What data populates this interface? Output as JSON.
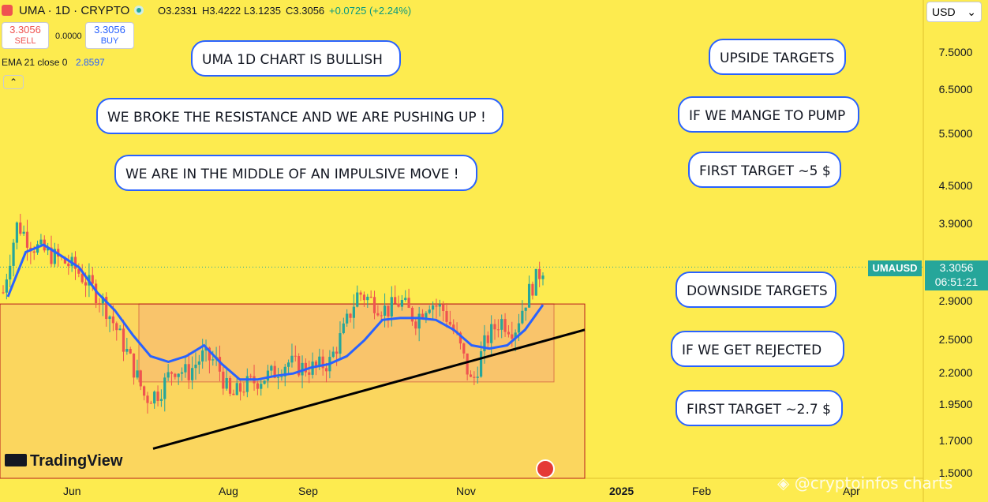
{
  "header": {
    "symbol": "UMA · 1D · CRYPTO",
    "open": "O3.2331",
    "high": "H3.4222",
    "low": "L3.1235",
    "close": "C3.3056",
    "change": "+0.0725 (+2.24%)",
    "sell_price": "3.3056",
    "sell_label": "SELL",
    "spread": "0.0000",
    "buy_price": "3.3056",
    "buy_label": "BUY",
    "ema_label": "EMA 21 close 0",
    "ema_value": "2.8597",
    "currency": "USD"
  },
  "callouts": {
    "title": "UMA 1D CHART IS BULLISH",
    "line1": "WE BROKE THE RESISTANCE AND WE ARE PUSHING UP !",
    "line2": "WE ARE IN THE MIDDLE OF AN IMPULSIVE MOVE !",
    "upside": "UPSIDE TARGETS",
    "pump": "IF WE MANGE TO PUMP",
    "first_up": "FIRST TARGET ~5 $",
    "downside": "DOWNSIDE TARGETS",
    "rejected": "IF WE GET REJECTED",
    "first_down": "FIRST TARGET ~2.7 $"
  },
  "price_label": {
    "symbol": "UMAUSD",
    "price": "3.3056",
    "countdown": "06:51:21"
  },
  "watermark": "@cryptoinfos charts",
  "logo_text": "TradingView",
  "colors": {
    "background": "#fdeb4f",
    "up": "#26a69a",
    "down": "#ef5350",
    "ema": "#2962ff",
    "zone_fill": "#f9c46b",
    "zone_border": "#b71c1c"
  },
  "chart_data": {
    "type": "candlestick",
    "y_scale": "log",
    "yticks": [
      "7.5000",
      "6.5000",
      "5.5000",
      "4.5000",
      "3.9000",
      "2.9000",
      "2.5000",
      "2.2000",
      "1.9500",
      "1.7000",
      "1.5000"
    ],
    "xticks": [
      "Jun",
      "Aug",
      "Sep",
      "Nov",
      "2025",
      "Feb",
      "Apr"
    ],
    "last_price": 3.3056,
    "ohlc_trend": [
      3.0,
      3.9,
      3.6,
      3.5,
      3.4,
      3.3,
      3.1,
      2.9,
      2.6,
      2.3,
      2.0,
      2.05,
      2.25,
      2.2,
      2.35,
      2.3,
      2.0,
      2.1,
      2.15,
      2.2,
      2.3,
      2.25,
      2.25,
      2.3,
      2.6,
      3.0,
      2.9,
      2.8,
      2.9,
      2.7,
      2.9,
      2.8,
      2.5,
      2.1,
      2.5,
      2.7,
      2.6,
      3.0,
      3.3
    ],
    "ema21": [
      2.95,
      3.5,
      3.6,
      3.45,
      3.3,
      3.0,
      2.8,
      2.55,
      2.35,
      2.3,
      2.35,
      2.45,
      2.28,
      2.15,
      2.15,
      2.18,
      2.2,
      2.25,
      2.28,
      2.35,
      2.5,
      2.7,
      2.72,
      2.72,
      2.7,
      2.6,
      2.45,
      2.42,
      2.45,
      2.6,
      2.86
    ],
    "trendline": {
      "start": 1.65,
      "end": 2.6
    },
    "resistance_zone": {
      "top": 2.87,
      "bottom": 2.13
    },
    "annotations": [
      "UMA 1D CHART IS BULLISH",
      "UPSIDE TARGETS",
      "DOWNSIDE TARGETS"
    ]
  }
}
